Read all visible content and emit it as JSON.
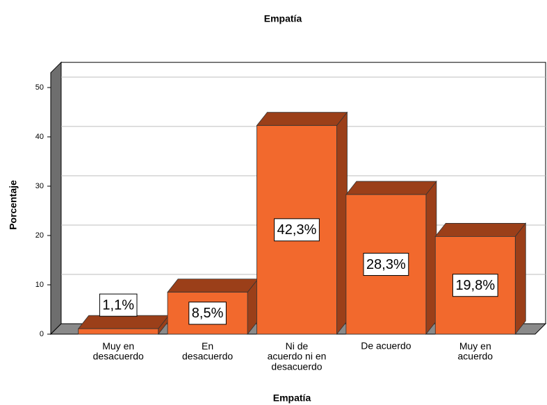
{
  "chart_data": {
    "type": "bar3d",
    "title": "Empatía",
    "xlabel": "Empatía",
    "ylabel": "Porcentaje",
    "categories": [
      "Muy en\ndesacuerdo",
      "En\ndesacuerdo",
      "Ni de\nacuerdo ni en\ndesacuerdo",
      "De acuerdo",
      "Muy en\nacuerdo"
    ],
    "values": [
      1.1,
      8.5,
      42.3,
      28.3,
      19.8
    ],
    "value_labels": [
      "1,1%",
      "8,5%",
      "42,3%",
      "28,3%",
      "19,8%"
    ],
    "color": "#f2692d",
    "shade_color": "#9b3f19",
    "ylim": [
      0,
      53
    ],
    "yticks": [
      0,
      10,
      20,
      30,
      40,
      50
    ],
    "grid": true
  }
}
